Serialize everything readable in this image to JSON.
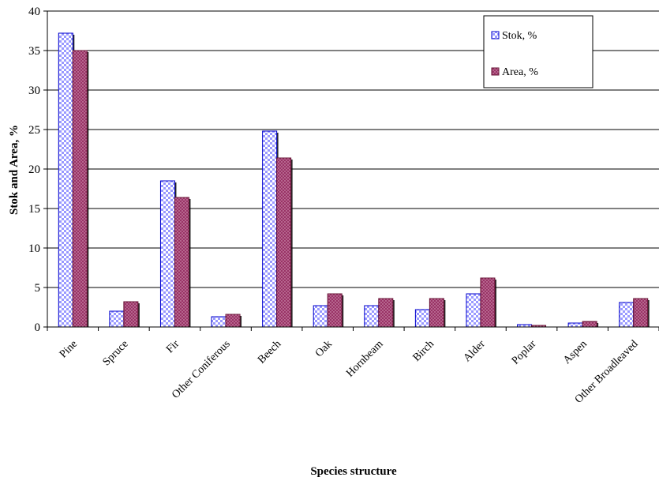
{
  "chart_data": {
    "type": "bar",
    "xlabel": "Species structure",
    "ylabel": "Stok and Area, %",
    "ylim": [
      0,
      40
    ],
    "yticks": [
      0,
      5,
      10,
      15,
      20,
      25,
      30,
      35,
      40
    ],
    "grid": "horizontal",
    "legend": "top-right",
    "categories": [
      "Pine",
      "Spruce",
      "Fir",
      "Other Coniferous",
      "Beech",
      "Oak",
      "Hornbeam",
      "Birch",
      "Alder",
      "Poplar",
      "Aspen",
      "Other Broadleaved"
    ],
    "series": [
      {
        "name": "Stok, %",
        "color": "#9999ff",
        "pattern": "checker",
        "values": [
          37.2,
          2.0,
          18.5,
          1.3,
          24.8,
          2.7,
          2.7,
          2.2,
          4.2,
          0.3,
          0.5,
          3.1
        ]
      },
      {
        "name": "Area, %",
        "color": "#993366",
        "pattern": "dotted",
        "values": [
          35.0,
          3.2,
          16.4,
          1.6,
          21.4,
          4.2,
          3.6,
          3.6,
          6.2,
          0.2,
          0.7,
          3.6
        ]
      }
    ]
  }
}
